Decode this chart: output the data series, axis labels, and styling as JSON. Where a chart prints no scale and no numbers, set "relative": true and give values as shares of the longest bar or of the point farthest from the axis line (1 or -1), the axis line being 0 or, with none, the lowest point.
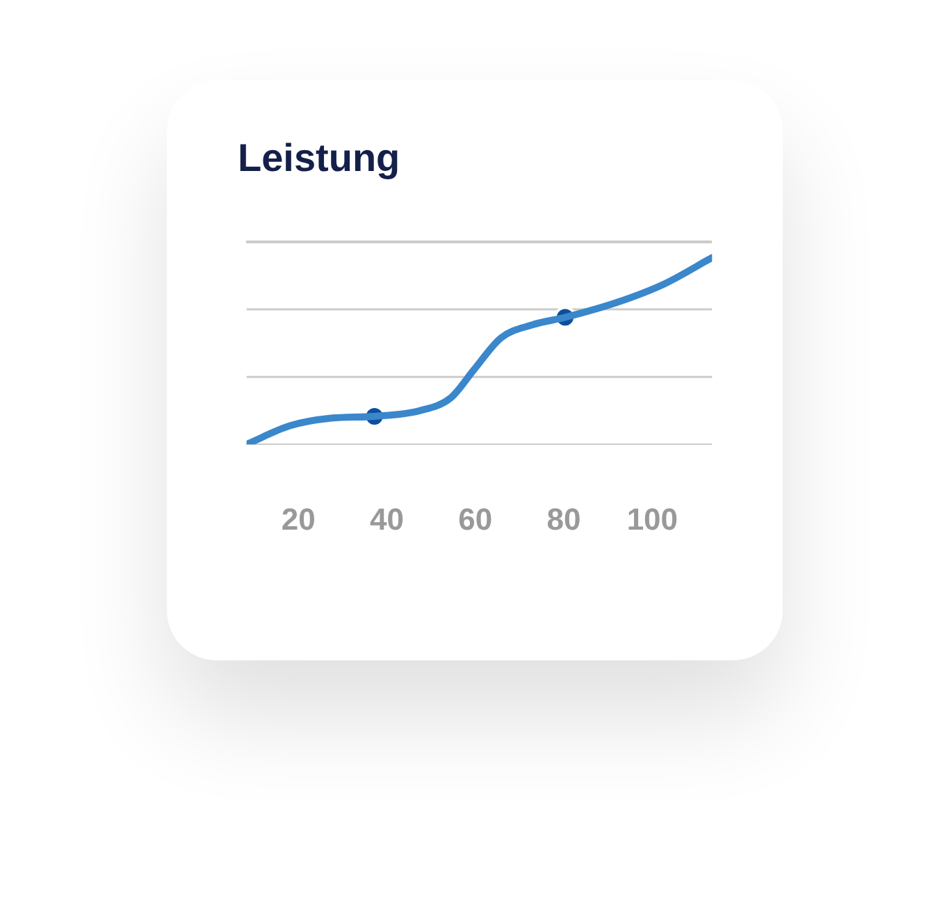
{
  "chart_data": {
    "type": "line",
    "title": "Leistung",
    "relative": true,
    "ref_lines": [
      {
        "axis": "y",
        "value": 0.361,
        "color": "#cccccc",
        "line_style": "solid"
      },
      {
        "axis": "y",
        "value": 0.723,
        "color": "#cccccc",
        "line_style": "solid"
      }
    ],
    "legend": false,
    "tick_labels": "x",
    "line_style": "solid",
    "xlim": [
      8.3,
      113.5
    ],
    "xticks": [
      20,
      40,
      60,
      80,
      100
    ],
    "series": [
      {
        "type": "line",
        "color": "#3a87cc",
        "marker": "none",
        "x": [
          8.3,
          18.2,
          27.4,
          37.2,
          47.4,
          54.5,
          59.7,
          65.8,
          72.9,
          80.3,
          92,
          102.8,
          113.5
        ],
        "values": [
          0,
          0.1,
          0.14,
          0.15,
          0.18,
          0.25,
          0.4,
          0.57,
          0.64,
          0.68,
          0.76,
          0.86,
          1
        ]
      },
      {
        "type": "scatter",
        "color": "#0d4f9e",
        "marker": "circle",
        "x": [
          37.2,
          80.3
        ],
        "values": [
          0.15,
          0.68
        ]
      }
    ]
  }
}
